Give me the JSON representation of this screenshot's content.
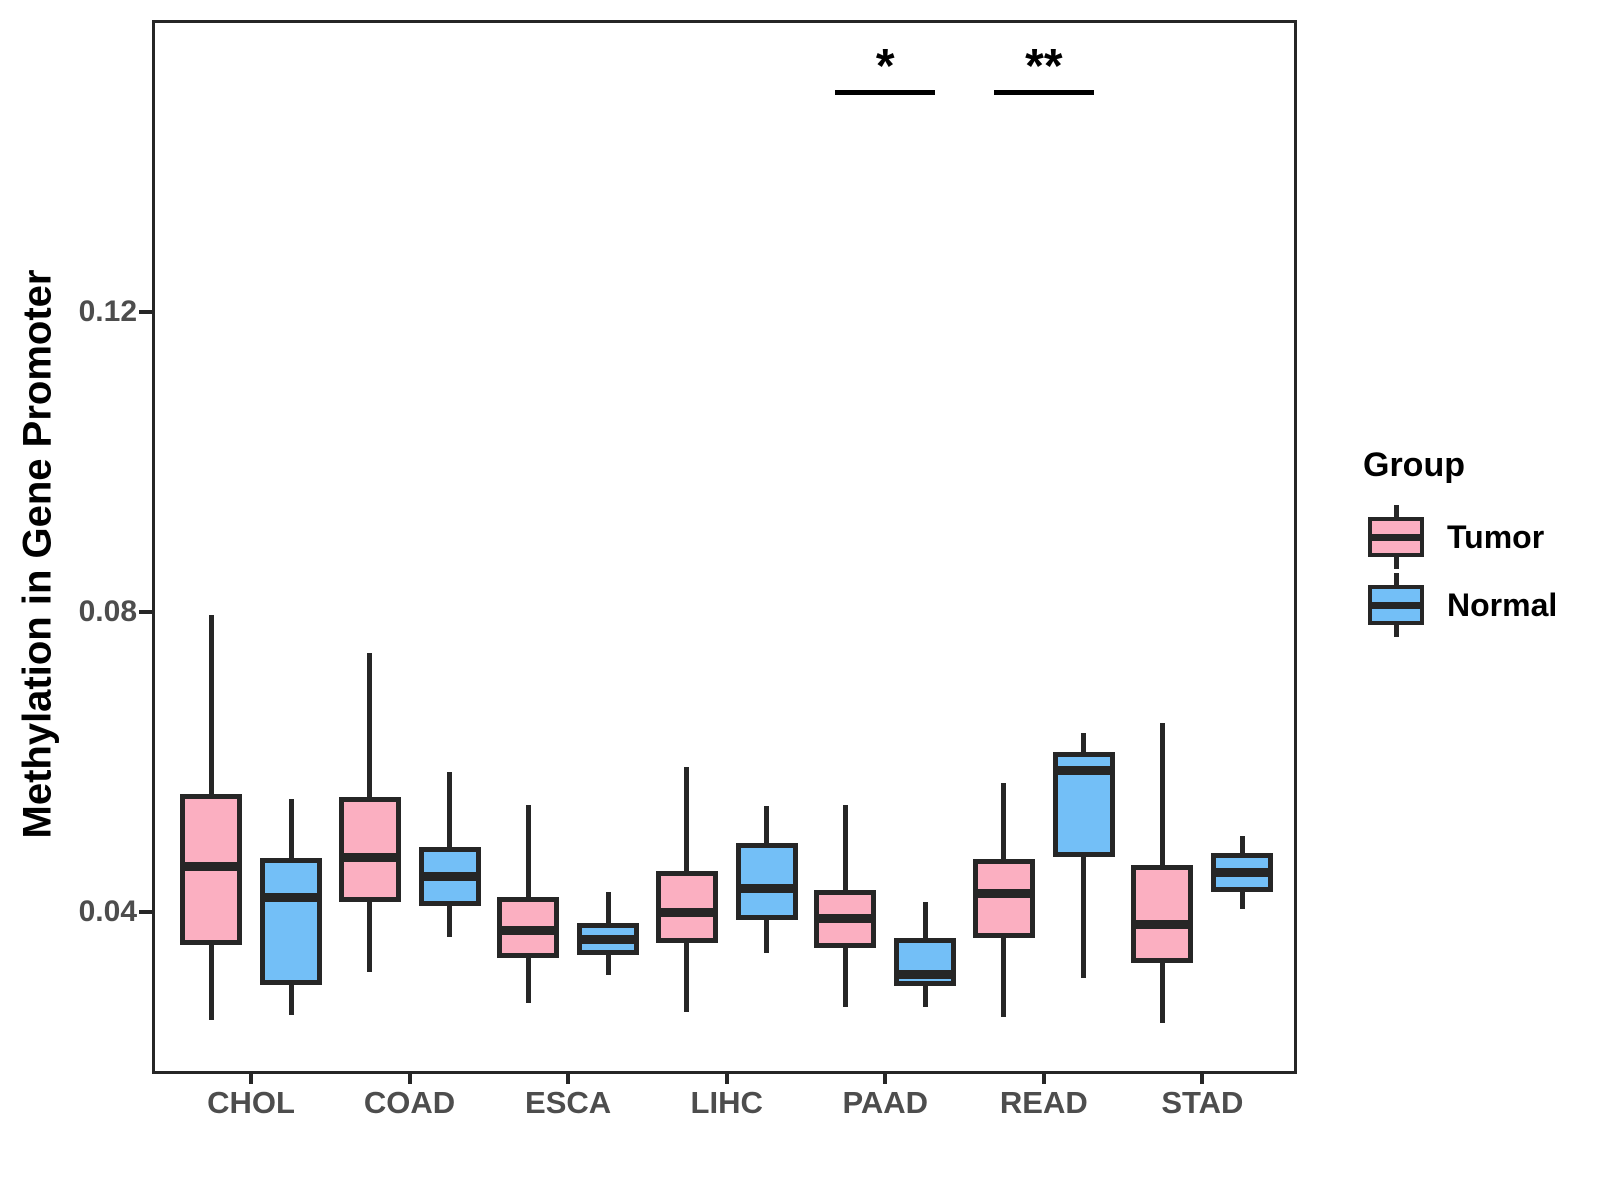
{
  "chart_data": {
    "type": "boxplot",
    "title": "",
    "xlabel": "",
    "ylabel": "Methylation in Gene Promoter",
    "categories": [
      "CHOL",
      "COAD",
      "ESCA",
      "LIHC",
      "PAAD",
      "READ",
      "STAD"
    ],
    "y_ticks": [
      {
        "value": 0.04,
        "label": "0.04"
      },
      {
        "value": 0.08,
        "label": "0.08"
      },
      {
        "value": 0.12,
        "label": "0.12"
      }
    ],
    "ylim": [
      0.0188,
      0.1585
    ],
    "grid": false,
    "legend": {
      "title": "Group",
      "position": "right",
      "items": [
        {
          "label": "Tumor",
          "color": "#FBAFC1"
        },
        {
          "label": "Normal",
          "color": "#73BFF7"
        }
      ]
    },
    "series": [
      {
        "name": "Tumor",
        "color": "#FBAFC1",
        "boxes": [
          {
            "category": "CHOL",
            "min": 0.0256,
            "q1": 0.0356,
            "median": 0.0461,
            "q3": 0.0557,
            "max": 0.0796
          },
          {
            "category": "COAD",
            "min": 0.032,
            "q1": 0.0413,
            "median": 0.0473,
            "q3": 0.0553,
            "max": 0.0745
          },
          {
            "category": "ESCA",
            "min": 0.0279,
            "q1": 0.0339,
            "median": 0.0375,
            "q3": 0.042,
            "max": 0.0543
          },
          {
            "category": "LIHC",
            "min": 0.0267,
            "q1": 0.0359,
            "median": 0.0399,
            "q3": 0.0455,
            "max": 0.0593
          },
          {
            "category": "PAAD",
            "min": 0.0273,
            "q1": 0.0352,
            "median": 0.0391,
            "q3": 0.0429,
            "max": 0.0543
          },
          {
            "category": "READ",
            "min": 0.026,
            "q1": 0.0365,
            "median": 0.0425,
            "q3": 0.0471,
            "max": 0.0572
          },
          {
            "category": "STAD",
            "min": 0.0252,
            "q1": 0.0332,
            "median": 0.0383,
            "q3": 0.0463,
            "max": 0.0652
          }
        ]
      },
      {
        "name": "Normal",
        "color": "#73BFF7",
        "boxes": [
          {
            "category": "CHOL",
            "min": 0.0263,
            "q1": 0.0303,
            "median": 0.0419,
            "q3": 0.0472,
            "max": 0.0551
          },
          {
            "category": "COAD",
            "min": 0.0367,
            "q1": 0.0408,
            "median": 0.0447,
            "q3": 0.0487,
            "max": 0.0587
          },
          {
            "category": "ESCA",
            "min": 0.0316,
            "q1": 0.0343,
            "median": 0.0363,
            "q3": 0.0385,
            "max": 0.0427
          },
          {
            "category": "LIHC",
            "min": 0.0345,
            "q1": 0.0389,
            "median": 0.0431,
            "q3": 0.0492,
            "max": 0.0541
          },
          {
            "category": "PAAD",
            "min": 0.0273,
            "q1": 0.0301,
            "median": 0.0316,
            "q3": 0.0365,
            "max": 0.0413
          },
          {
            "category": "READ",
            "min": 0.0312,
            "q1": 0.0473,
            "median": 0.0589,
            "q3": 0.0613,
            "max": 0.0639
          },
          {
            "category": "STAD",
            "min": 0.0404,
            "q1": 0.0427,
            "median": 0.0452,
            "q3": 0.0479,
            "max": 0.0501
          }
        ]
      }
    ],
    "annotations": [
      {
        "category": "PAAD",
        "label": "*"
      },
      {
        "category": "READ",
        "label": "**"
      }
    ]
  }
}
